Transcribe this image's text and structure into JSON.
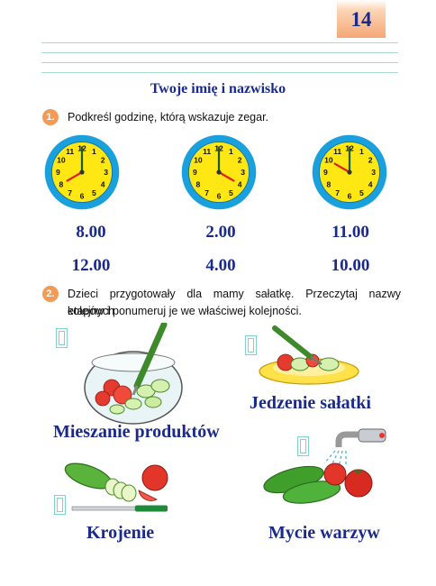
{
  "page": {
    "number": "14"
  },
  "title": "Twoje imię i nazwisko",
  "task1": {
    "number": "1.",
    "instruction": "Podkreśl godzinę, którą wskazuje zegar.",
    "clocks": [
      {
        "hour": 8,
        "minute": 0,
        "options": [
          "8.00",
          "12.00"
        ]
      },
      {
        "hour": 4,
        "minute": 0,
        "options": [
          "2.00",
          "4.00"
        ]
      },
      {
        "hour": 10,
        "minute": 0,
        "options": [
          "11.00",
          "10.00"
        ]
      }
    ]
  },
  "task2": {
    "number": "2.",
    "instruction_line1": "Dzieci przygotowały dla mamy sałatkę. Przeczytaj nazwy kolejnych",
    "instruction_line2": "etapów i ponumeruj je we właściwej kolejności.",
    "stages": {
      "mixing": "Mieszanie produktów",
      "eating": "Jedzenie sałatki",
      "cutting": "Krojenie",
      "washing": "Mycie warzyw"
    }
  },
  "colors": {
    "title_blue": "#1a2a8a",
    "accent_orange": "#f39a55",
    "clock_face": "#ffe714",
    "clock_rim": "#1aa0dc"
  }
}
